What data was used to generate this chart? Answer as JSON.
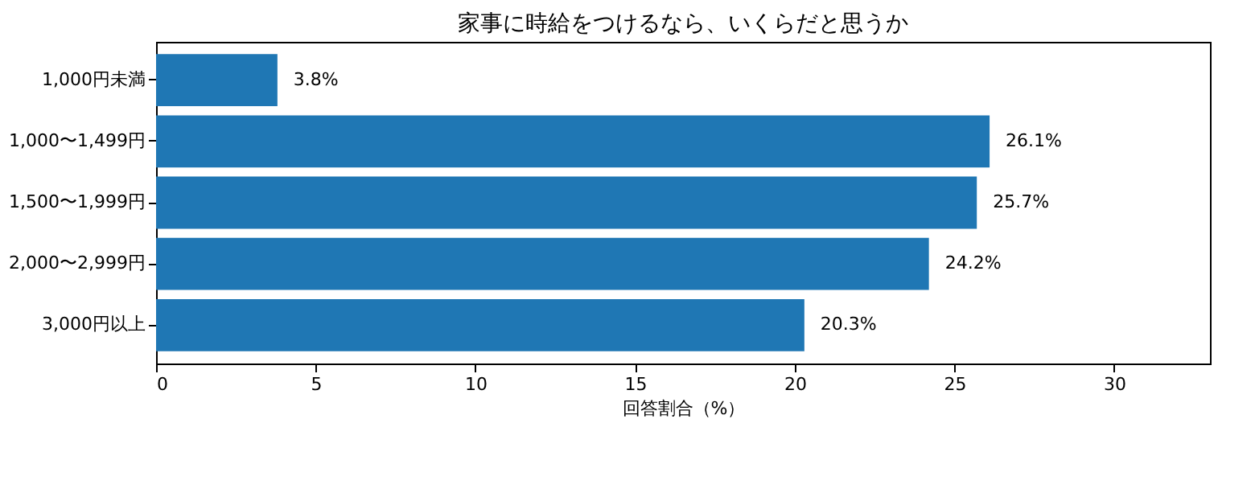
{
  "chart_data": {
    "type": "bar",
    "orientation": "horizontal",
    "title": "家事に時給をつけるなら、いくらだと思うか",
    "xlabel": "回答割合（%）",
    "categories": [
      "1,000円未満",
      "1,000〜1,499円",
      "1,500〜1,999円",
      "2,000〜2,999円",
      "3,000円以上"
    ],
    "values": [
      3.8,
      26.1,
      25.7,
      24.2,
      20.3
    ],
    "value_labels": [
      "3.8%",
      "26.1%",
      "25.7%",
      "24.2%",
      "20.3%"
    ],
    "color": "#1f77b4",
    "xlim": [
      0,
      33
    ],
    "xticks": [
      0,
      5,
      10,
      15,
      20,
      25,
      30
    ],
    "grid": false
  }
}
